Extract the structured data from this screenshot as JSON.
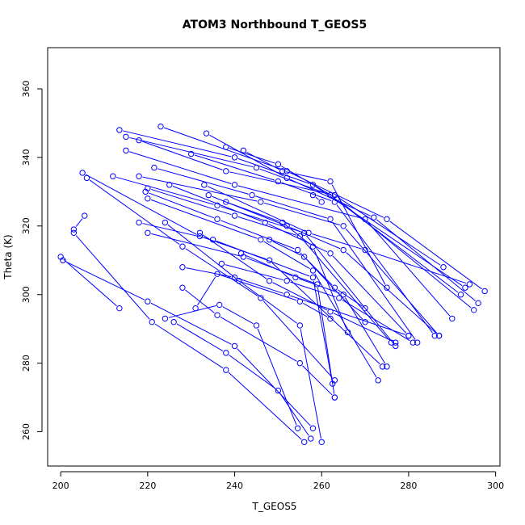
{
  "chart_data": {
    "type": "scatter",
    "title": "ATOM3 Northbound T_GEOS5",
    "xlabel": "T_GEOS5",
    "ylabel": "Theta (K)",
    "xlim": [
      197,
      301
    ],
    "ylim": [
      250,
      372
    ],
    "xticks": [
      200,
      220,
      240,
      260,
      280,
      300
    ],
    "yticks": [
      260,
      280,
      300,
      320,
      340,
      360
    ],
    "grid": false,
    "legend": "none",
    "colors": {
      "series": "#0000ff",
      "frame": "#000000"
    },
    "series": [
      {
        "x": [
          223.0,
          252.0,
          275.0,
          297.5
        ],
        "y": [
          349.0,
          336.0,
          322.0,
          301.0
        ]
      },
      {
        "x": [
          233.5,
          252.0,
          272.0,
          296.0
        ],
        "y": [
          347.0,
          334.0,
          322.5,
          297.5
        ]
      },
      {
        "x": [
          213.5,
          240.0,
          258.0,
          293.0
        ],
        "y": [
          348.0,
          340.0,
          332.0,
          302.0
        ]
      },
      {
        "x": [
          215.0,
          245.0,
          262.0,
          292.0
        ],
        "y": [
          346.0,
          337.0,
          329.0,
          300.0
        ]
      },
      {
        "x": [
          218.0,
          238.0,
          263.0,
          288.0
        ],
        "y": [
          345.0,
          336.0,
          329.0,
          308.0
        ]
      },
      {
        "x": [
          230.0,
          250.0,
          263.0,
          286.0
        ],
        "y": [
          341.0,
          333.0,
          327.0,
          288.0
        ]
      },
      {
        "x": [
          215.0,
          240.0,
          270.0,
          290.0
        ],
        "y": [
          342.0,
          332.0,
          322.0,
          293.0
        ]
      },
      {
        "x": [
          221.5,
          244.0,
          262.0,
          282.0
        ],
        "y": [
          337.0,
          329.0,
          322.0,
          286.0
        ]
      },
      {
        "x": [
          212.0,
          236.0,
          256.0,
          277.0
        ],
        "y": [
          334.5,
          326.0,
          318.0,
          285.0
        ]
      },
      {
        "x": [
          218.0,
          246.0,
          265.0,
          287.0
        ],
        "y": [
          334.5,
          327.0,
          320.0,
          288.0
        ]
      },
      {
        "x": [
          220.0,
          240.0,
          255.0,
          276.0
        ],
        "y": [
          331.0,
          323.0,
          317.0,
          286.0
        ]
      },
      {
        "x": [
          219.5,
          236.0,
          254.5,
          270.0
        ],
        "y": [
          330.0,
          322.0,
          313.0,
          292.0
        ]
      },
      {
        "x": [
          205.0,
          232.0,
          248.0,
          274.0
        ],
        "y": [
          335.5,
          317.0,
          310.0,
          279.0
        ]
      },
      {
        "x": [
          220.0,
          246.0,
          258.0,
          273.0
        ],
        "y": [
          328.0,
          316.0,
          307.0,
          275.0
        ]
      },
      {
        "x": [
          225.0,
          247.0,
          262.0,
          280.0
        ],
        "y": [
          332.0,
          321.0,
          312.0,
          288.0
        ]
      },
      {
        "x": [
          234.0,
          252.0,
          265.0,
          287.0
        ],
        "y": [
          329.0,
          320.0,
          313.0,
          288.0
        ]
      },
      {
        "x": [
          218.0,
          235.0,
          258.0,
          262.5
        ],
        "y": [
          321.0,
          316.0,
          305.0,
          274.0
        ]
      },
      {
        "x": [
          220.0,
          242.0,
          259.0,
          263.0
        ],
        "y": [
          318.0,
          311.0,
          303.0,
          270.0
        ]
      },
      {
        "x": [
          203.0,
          205.5
        ],
        "y": [
          319.0,
          323.0
        ]
      },
      {
        "x": [
          206.0,
          228.0,
          246.0,
          263.0
        ],
        "y": [
          334.0,
          314.0,
          299.0,
          275.0
        ]
      },
      {
        "x": [
          200.0,
          213.5
        ],
        "y": [
          311.0,
          296.0
        ]
      },
      {
        "x": [
          200.5,
          220.0,
          240.0,
          258.0
        ],
        "y": [
          310.0,
          298.0,
          285.0,
          261.0
        ]
      },
      {
        "x": [
          203.0,
          221.0,
          238.0,
          256.0
        ],
        "y": [
          318.0,
          292.0,
          278.0,
          257.0
        ]
      },
      {
        "x": [
          224.0,
          241.0,
          255.0,
          260.0
        ],
        "y": [
          321.0,
          304.0,
          291.0,
          257.0
        ]
      },
      {
        "x": [
          226.0,
          238.0,
          250.0,
          257.5
        ],
        "y": [
          292.0,
          283.0,
          272.0,
          258.0
        ]
      },
      {
        "x": [
          224.0,
          236.5,
          245.0,
          254.5
        ],
        "y": [
          293.0,
          297.0,
          291.0,
          261.0
        ]
      },
      {
        "x": [
          228.0,
          236.0,
          255.0,
          263.0
        ],
        "y": [
          302.0,
          294.0,
          280.0,
          270.0
        ]
      },
      {
        "x": [
          231.0,
          236.0,
          255.0,
          262.0
        ],
        "y": [
          296.0,
          306.0,
          298.0,
          293.0
        ]
      },
      {
        "x": [
          232.0,
          248.0,
          262.0,
          277.0
        ],
        "y": [
          318.0,
          304.0,
          295.0,
          286.0
        ]
      },
      {
        "x": [
          228.0,
          240.0,
          252.0,
          280.0
        ],
        "y": [
          308.0,
          305.0,
          300.0,
          288.0
        ]
      },
      {
        "x": [
          237.0,
          252.0,
          264.0,
          281.0
        ],
        "y": [
          309.0,
          304.0,
          299.0,
          286.0
        ]
      },
      {
        "x": [
          241.5,
          254.0,
          265.0,
          275.0
        ],
        "y": [
          312.0,
          305.0,
          300.0,
          279.0
        ]
      },
      {
        "x": [
          238.0,
          251.0,
          258.0,
          266.0
        ],
        "y": [
          327.0,
          321.0,
          314.0,
          289.0
        ]
      },
      {
        "x": [
          242.0,
          251.0,
          262.0,
          275.0
        ],
        "y": [
          342.0,
          336.0,
          333.0,
          302.0
        ]
      },
      {
        "x": [
          238.0,
          250.0,
          263.5,
          295.0
        ],
        "y": [
          343.0,
          338.0,
          328.0,
          295.5
        ]
      },
      {
        "x": [
          233.0,
          257.0,
          270.0,
          294.0
        ],
        "y": [
          332.0,
          318.0,
          313.0,
          303.0
        ]
      },
      {
        "x": [
          258.0,
          260.0
        ],
        "y": [
          329.0,
          327.0
        ]
      },
      {
        "x": [
          248.0,
          256.0,
          263.0,
          270.0
        ],
        "y": [
          316.0,
          311.0,
          302.0,
          296.0
        ]
      }
    ]
  }
}
